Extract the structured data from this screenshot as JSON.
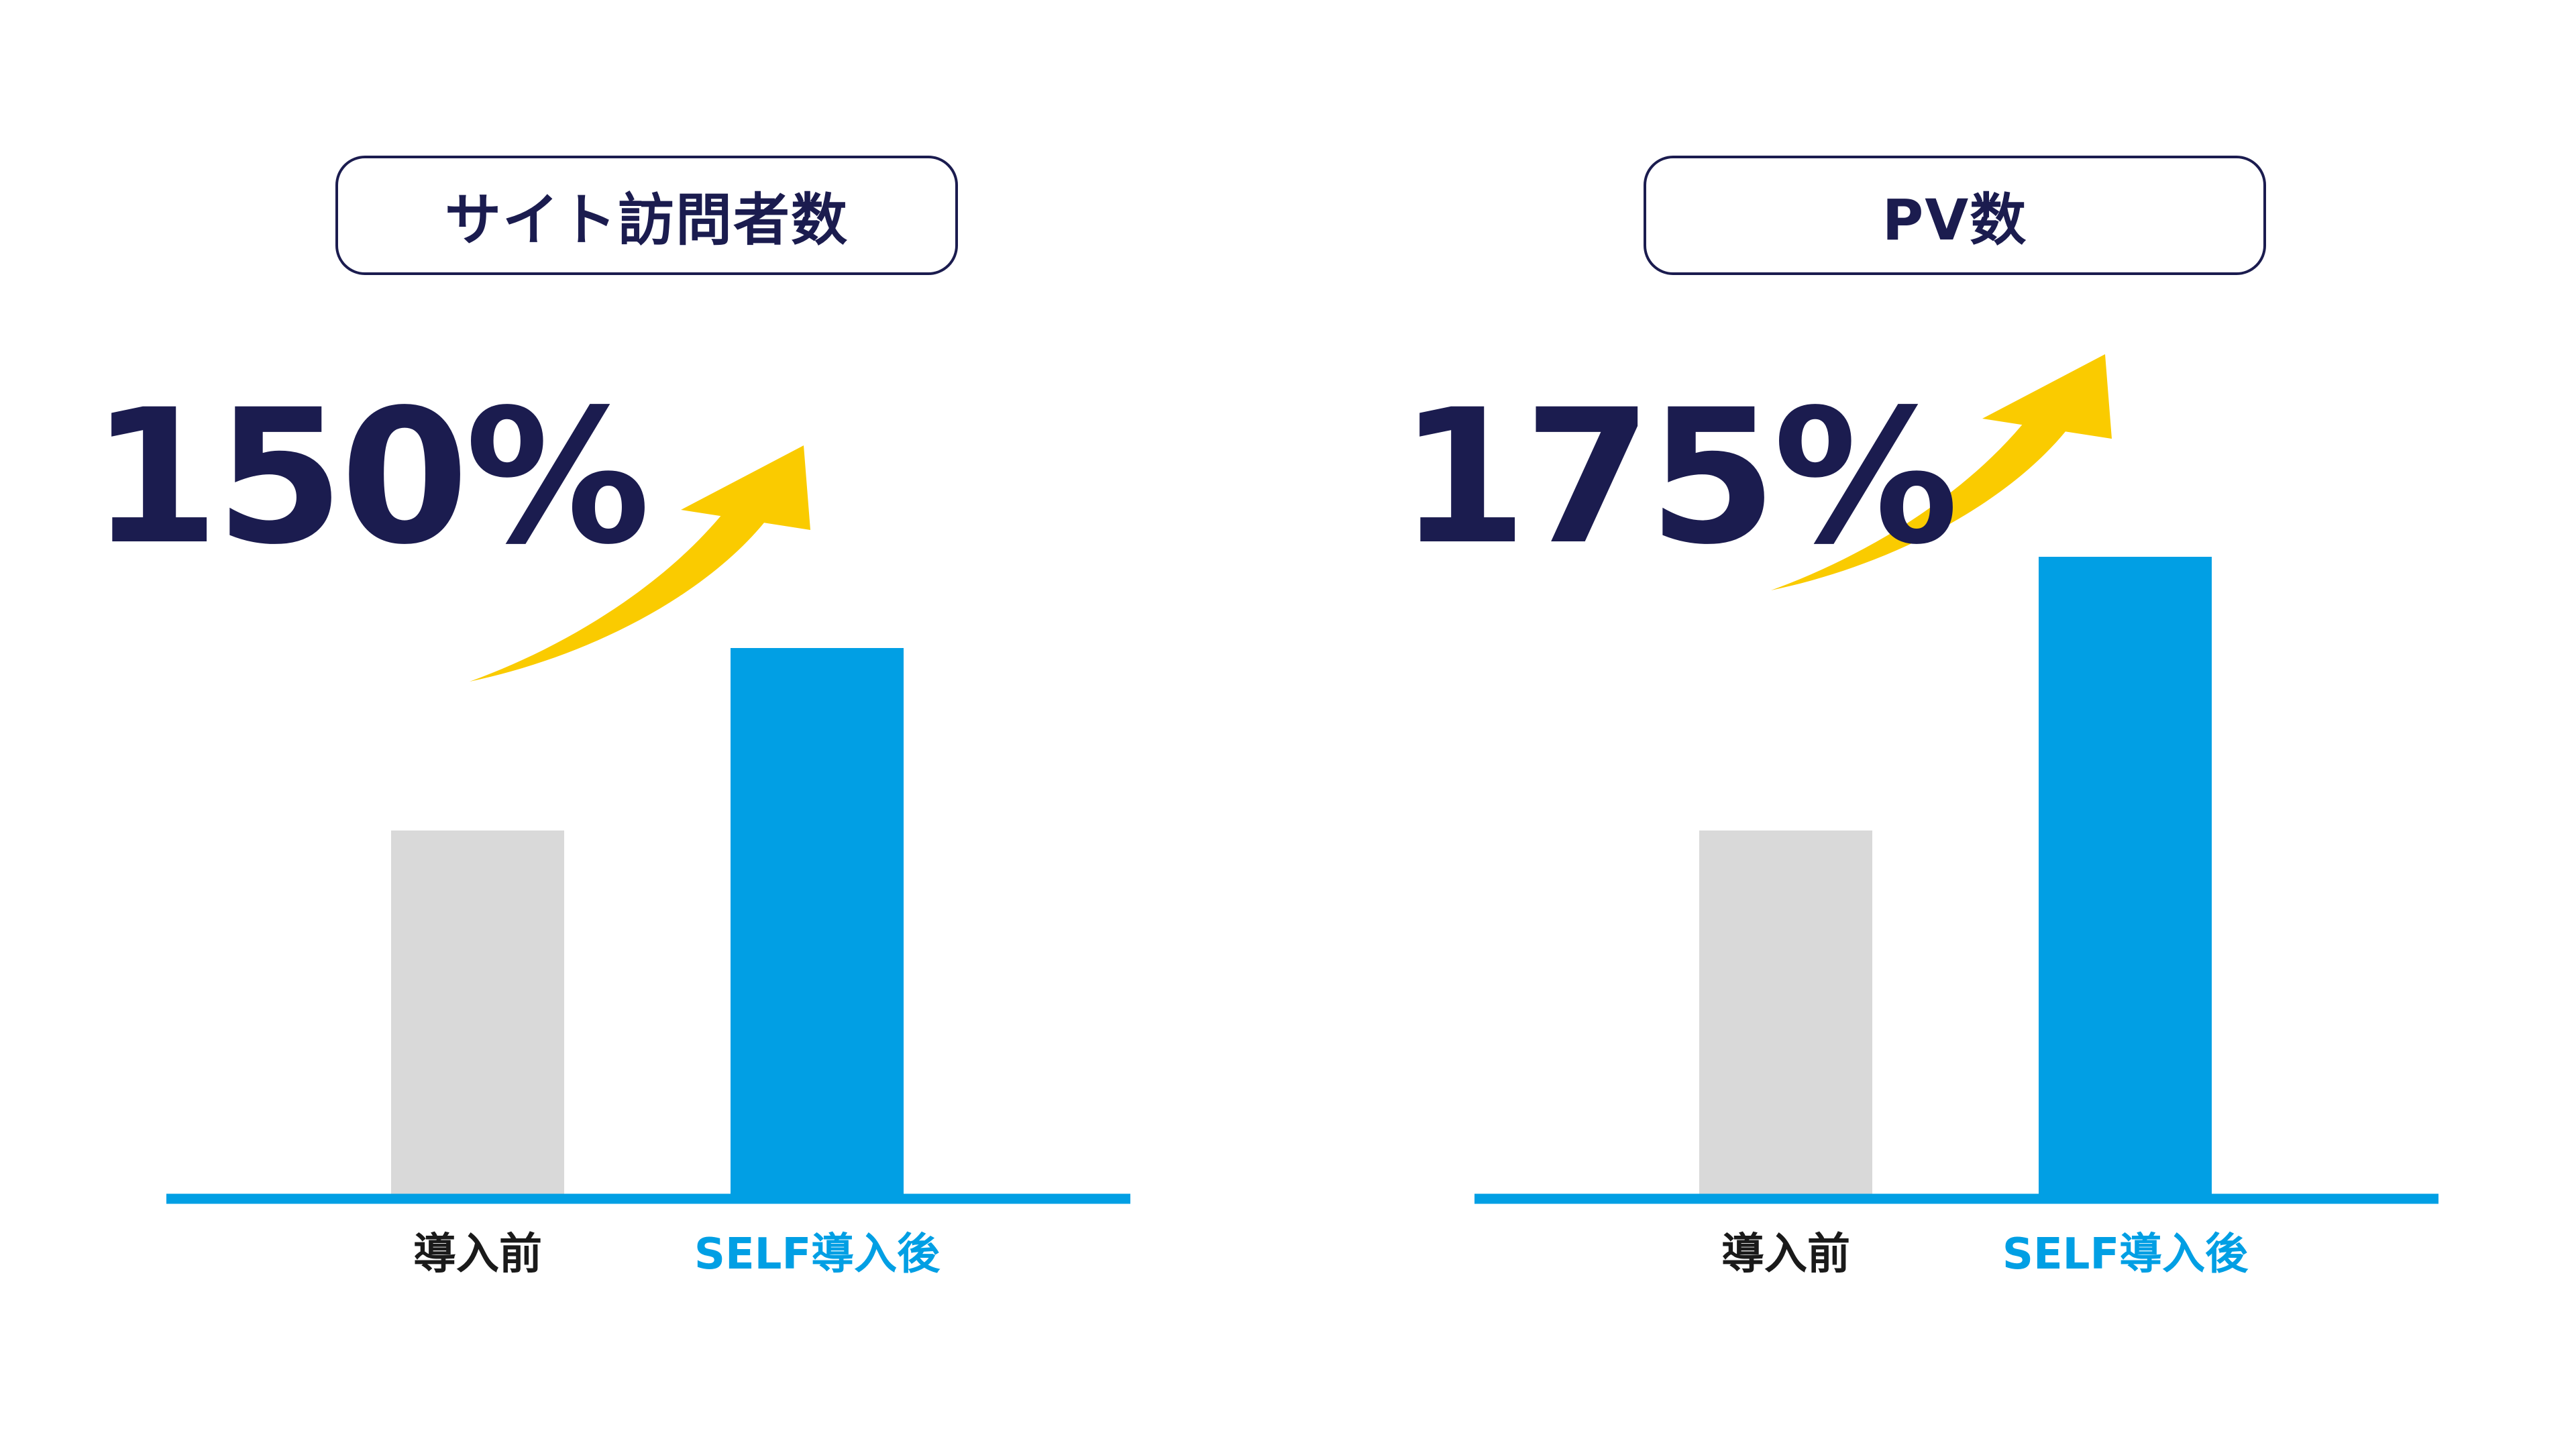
{
  "colors": {
    "navy": "#1b1c4f",
    "bar_before": "#d9d9d9",
    "bar_after": "#019fe4",
    "axis": "#019fe4",
    "arrow": "#facb00",
    "label_before": "#1a1a1a",
    "label_after": "#019fe4"
  },
  "icons": {
    "growth_arrow": "arrow-up-right-icon"
  },
  "chart_data": [
    {
      "type": "bar",
      "title": "サイト訪問者数",
      "headline": "150%",
      "categories": [
        "導入前",
        "SELF導入後"
      ],
      "values": [
        100,
        150
      ],
      "ylim": [
        0,
        250
      ],
      "grid": false,
      "legend": "none"
    },
    {
      "type": "bar",
      "title": "PV数",
      "headline": "175%",
      "categories": [
        "導入前",
        "SELF導入後"
      ],
      "values": [
        100,
        175
      ],
      "ylim": [
        0,
        250
      ],
      "grid": false,
      "legend": "none"
    }
  ]
}
